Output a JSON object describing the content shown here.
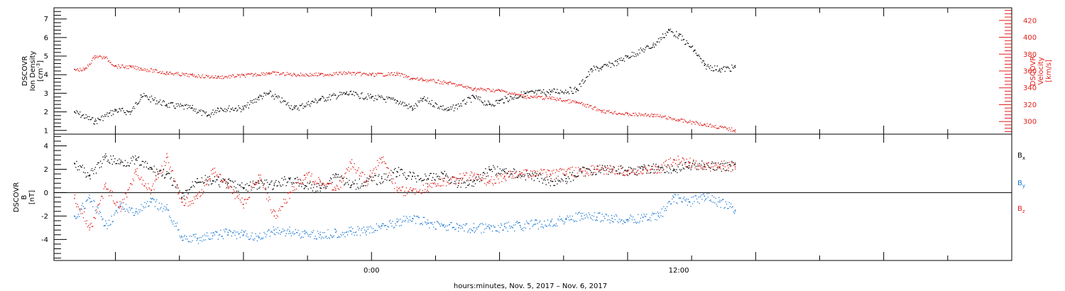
{
  "chart_data": [
    {
      "type": "scatter",
      "title": "",
      "left_axis": {
        "label_lines": [
          "DSCOVR",
          "Ion Density",
          "[cm^-3]"
        ],
        "ylim": [
          0.8,
          7.6
        ],
        "ticks": [
          1,
          2,
          3,
          4,
          5,
          6,
          7
        ],
        "color": "#000000"
      },
      "right_axis": {
        "label_lines": [
          "DSCOVR",
          "Velocity",
          "[km/s]"
        ],
        "ylim": [
          285,
          435
        ],
        "ticks": [
          300,
          320,
          340,
          360,
          380,
          400,
          420
        ],
        "color": "#e0201c"
      },
      "series": [
        {
          "key": "density",
          "axis": "left",
          "color": "#000000",
          "x": [
            -11.6,
            -10.8,
            -10,
            -9.4,
            -9,
            -8,
            -7,
            -6.4,
            -6,
            -5,
            -4.4,
            -4,
            -3,
            -2,
            -1,
            0,
            1,
            1.6,
            2,
            3,
            4,
            4.6,
            5,
            6,
            7,
            8,
            8.6,
            9,
            9.6,
            10,
            11,
            11.6,
            12,
            12.6,
            13,
            13.6,
            14.2
          ],
          "y": [
            2.0,
            1.5,
            2.1,
            2.0,
            2.9,
            2.4,
            2.2,
            1.8,
            2.2,
            2.2,
            2.8,
            3.0,
            2.2,
            2.7,
            3.0,
            2.8,
            2.6,
            2.2,
            2.7,
            2.1,
            2.8,
            2.4,
            2.6,
            3.0,
            3.1,
            3.2,
            4.3,
            4.4,
            4.7,
            5.0,
            5.6,
            6.4,
            6.1,
            5.3,
            4.5,
            4.3,
            4.4
          ]
        },
        {
          "key": "velocity",
          "axis": "right",
          "color": "#e0201c",
          "x": [
            -11.6,
            -11.2,
            -10.8,
            -10.4,
            -10,
            -9.4,
            -9,
            -8,
            -7,
            -6,
            -5,
            -4,
            -3,
            -2,
            -1,
            0,
            1,
            1.6,
            2,
            3,
            4,
            5,
            6,
            7,
            8,
            9,
            10,
            11,
            12,
            13,
            14.2
          ],
          "y": [
            362,
            362,
            378,
            376,
            366,
            365,
            363,
            358,
            355,
            353,
            355,
            358,
            356,
            356,
            358,
            356,
            357,
            351,
            350,
            346,
            339,
            337,
            330,
            328,
            323,
            313,
            309,
            308,
            302,
            297,
            290
          ]
        }
      ]
    },
    {
      "type": "scatter",
      "title": "",
      "y_axis": {
        "label_lines": [
          "DSCOVR",
          "B",
          "[nT]"
        ],
        "ylim": [
          -5.8,
          5.0
        ],
        "ticks": [
          -4,
          -2,
          0,
          2,
          4
        ],
        "color": "#000000"
      },
      "zero_line": true,
      "series": [
        {
          "key": "bx",
          "name": "Bx",
          "name_main": "B",
          "name_sub": "x",
          "color": "#000000",
          "x": [
            -11.6,
            -11,
            -10.4,
            -9.8,
            -9.2,
            -8.6,
            -8,
            -7.4,
            -6.8,
            -6.2,
            -5.6,
            -5,
            -4.4,
            -3.8,
            -3.2,
            -2.6,
            -2,
            -1.4,
            -0.8,
            -0.2,
            0.4,
            1,
            1.6,
            2.2,
            2.8,
            3.4,
            4,
            4.6,
            5.2,
            5.8,
            6.4,
            7,
            7.6,
            8.2,
            8.8,
            9.4,
            10,
            10.6,
            11.2,
            11.8,
            12.4,
            13,
            13.6,
            14.2
          ],
          "y": [
            2.5,
            1.5,
            3.0,
            2.6,
            2.8,
            2.0,
            1.6,
            -0.4,
            1.2,
            1.0,
            0.8,
            0.4,
            0.8,
            0.6,
            1.2,
            0.6,
            0.4,
            1.6,
            0.6,
            1.0,
            1.2,
            1.8,
            1.4,
            1.2,
            1.6,
            0.8,
            1.0,
            2.0,
            1.8,
            1.6,
            1.4,
            1.0,
            1.2,
            1.8,
            2.0,
            2.0,
            1.9,
            2.0,
            2.2,
            2.0,
            2.3,
            2.4,
            2.2,
            2.4
          ]
        },
        {
          "key": "by",
          "name": "By",
          "name_main": "B",
          "name_sub": "y",
          "color": "#1f78d2",
          "x": [
            -11.6,
            -11,
            -10.4,
            -9.8,
            -9.2,
            -8.6,
            -8,
            -7.4,
            -6.8,
            -6.2,
            -5.6,
            -5,
            -4.4,
            -3.8,
            -3.2,
            -2.6,
            -2,
            -1.4,
            -0.8,
            -0.2,
            0.4,
            1,
            1.6,
            2.2,
            2.8,
            3.4,
            4,
            4.6,
            5.2,
            5.8,
            6.4,
            7,
            7.6,
            8.2,
            8.8,
            9.4,
            10,
            10.6,
            11.2,
            11.8,
            12.4,
            13,
            13.6,
            14.2
          ],
          "y": [
            -2.0,
            -0.5,
            -2.8,
            -1.2,
            -1.6,
            -0.8,
            -1.4,
            -3.8,
            -3.9,
            -3.7,
            -3.4,
            -3.6,
            -3.8,
            -3.2,
            -3.3,
            -3.5,
            -3.6,
            -3.4,
            -3.3,
            -3.3,
            -2.8,
            -2.5,
            -2.2,
            -2.6,
            -2.8,
            -3.0,
            -3.0,
            -3.0,
            -2.9,
            -2.8,
            -2.7,
            -2.5,
            -2.2,
            -2.0,
            -2.1,
            -2.2,
            -2.3,
            -2.1,
            -2.0,
            -0.4,
            -0.8,
            -0.3,
            -0.8,
            -1.5
          ]
        },
        {
          "key": "bz",
          "name": "Bz",
          "name_main": "B",
          "name_sub": "z",
          "color": "#e0201c",
          "x": [
            -11.6,
            -11,
            -10.4,
            -9.8,
            -9.2,
            -8.6,
            -8,
            -7.4,
            -6.8,
            -6.2,
            -5.6,
            -5,
            -4.4,
            -3.8,
            -3.2,
            -2.6,
            -2,
            -1.4,
            -0.8,
            -0.2,
            0.4,
            1,
            1.6,
            2.2,
            2.8,
            3.4,
            4,
            4.6,
            5.2,
            5.8,
            6.4,
            7,
            7.6,
            8.2,
            8.8,
            9.4,
            10,
            10.6,
            11.2,
            11.8,
            12.4,
            13,
            13.6,
            14.2
          ],
          "y": [
            -0.5,
            -3.0,
            0.5,
            -1.2,
            1.8,
            0.2,
            3.0,
            -0.8,
            -0.5,
            2.0,
            0.5,
            -1.0,
            1.5,
            -2.0,
            0.0,
            1.5,
            1.0,
            0.2,
            2.5,
            1.0,
            3.0,
            0.2,
            0.2,
            0.5,
            1.0,
            1.2,
            1.5,
            1.0,
            1.4,
            1.6,
            1.8,
            1.5,
            1.8,
            1.8,
            2.0,
            2.0,
            1.8,
            1.9,
            2.0,
            2.8,
            2.6,
            2.2,
            2.4,
            2.2
          ]
        }
      ]
    }
  ],
  "x_axis": {
    "xlim": [
      -12.4,
      25.0
    ],
    "minor_tick_step": 2.5,
    "major_tick_step": 5,
    "labeled_ticks": [
      {
        "x": 0,
        "label": "0:00"
      },
      {
        "x": 12,
        "label": "12:00"
      }
    ],
    "title": "hours:minutes, Nov.  5, 2017 – Nov.  6, 2017"
  }
}
